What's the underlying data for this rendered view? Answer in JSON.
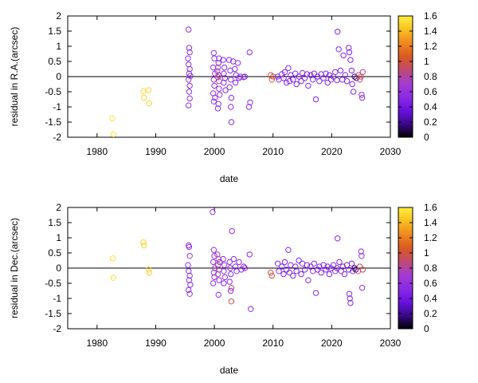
{
  "colorbar": {
    "ticks": [
      0,
      0.2,
      0.4,
      0.6,
      0.8,
      1,
      1.2,
      1.4,
      1.6
    ],
    "range": [
      0,
      1.6
    ],
    "stops": [
      "#000000",
      "#3a0a8a",
      "#6a10e0",
      "#8b2be6",
      "#a33cd0",
      "#c04a70",
      "#d95a20",
      "#f08820",
      "#f7c020",
      "#ffee40"
    ]
  },
  "chart_data": [
    {
      "type": "scatter",
      "title": "",
      "xlabel": "date",
      "ylabel": "residual in R.A.(arcsec)",
      "xlim": [
        1975,
        2030
      ],
      "ylim": [
        -2,
        2
      ],
      "xticks": [
        1980,
        1990,
        2000,
        2010,
        2020,
        2030
      ],
      "yticks": [
        -2,
        -1.5,
        -1,
        -0.5,
        0,
        0.5,
        1,
        1.5,
        2
      ],
      "points": [
        [
          1982.6,
          -1.38,
          1.55
        ],
        [
          1982.8,
          -1.9,
          1.55
        ],
        [
          1987.9,
          -0.48,
          1.5
        ],
        [
          1988.0,
          -0.7,
          1.5
        ],
        [
          1988.8,
          -0.45,
          1.5
        ],
        [
          1988.9,
          -0.88,
          1.5
        ],
        [
          1995.6,
          1.55,
          0.6
        ],
        [
          1995.7,
          0.95,
          0.6
        ],
        [
          1995.8,
          0.8,
          0.6
        ],
        [
          1995.5,
          0.6,
          0.6
        ],
        [
          1995.6,
          0.4,
          0.6
        ],
        [
          1995.8,
          0.25,
          0.6
        ],
        [
          1995.7,
          0.1,
          0.6
        ],
        [
          1995.9,
          0.02,
          0.6
        ],
        [
          1995.6,
          -0.1,
          0.6
        ],
        [
          1995.8,
          -0.3,
          0.6
        ],
        [
          1995.7,
          -0.5,
          0.6
        ],
        [
          1995.8,
          -0.72,
          0.6
        ],
        [
          1995.6,
          -0.95,
          0.6
        ],
        [
          1999.9,
          0.78,
          0.6
        ],
        [
          2000.0,
          0.6,
          0.6
        ],
        [
          1999.8,
          0.3,
          0.6
        ],
        [
          2000.1,
          0.1,
          0.6
        ],
        [
          1999.9,
          -0.1,
          0.6
        ],
        [
          2000.0,
          -0.3,
          0.6
        ],
        [
          1999.8,
          -0.55,
          0.6
        ],
        [
          2000.1,
          -0.7,
          0.6
        ],
        [
          1999.9,
          -0.82,
          0.6
        ],
        [
          2000.5,
          0.18,
          0.7
        ],
        [
          2000.7,
          0.05,
          0.75
        ],
        [
          2000.6,
          -0.02,
          0.8
        ],
        [
          2000.8,
          -0.15,
          0.8
        ],
        [
          2000.6,
          0.3,
          0.75
        ],
        [
          2000.8,
          -0.4,
          0.6
        ],
        [
          2000.9,
          -0.6,
          0.6
        ],
        [
          2000.7,
          -0.9,
          0.6
        ],
        [
          2000.6,
          -1.05,
          0.6
        ],
        [
          2000.8,
          0.6,
          0.6
        ],
        [
          2000.7,
          0.45,
          0.6
        ],
        [
          2001.5,
          0.55,
          0.55
        ],
        [
          2001.7,
          0.3,
          0.55
        ],
        [
          2001.6,
          0.1,
          0.55
        ],
        [
          2001.8,
          -0.05,
          0.55
        ],
        [
          2001.6,
          -0.2,
          0.55
        ],
        [
          2001.9,
          -0.45,
          0.55
        ],
        [
          2002.5,
          0.55,
          0.55
        ],
        [
          2002.7,
          0.2,
          0.55
        ],
        [
          2002.8,
          -0.1,
          0.55
        ],
        [
          2002.6,
          -0.35,
          0.55
        ],
        [
          2002.9,
          -0.7,
          0.55
        ],
        [
          2002.8,
          -1.0,
          0.55
        ],
        [
          2002.9,
          -1.5,
          0.55
        ],
        [
          2003.2,
          0.5,
          0.55
        ],
        [
          2003.5,
          0.25,
          0.55
        ],
        [
          2003.7,
          0.05,
          0.55
        ],
        [
          2003.6,
          -0.2,
          0.55
        ],
        [
          2004.0,
          0.45,
          0.55
        ],
        [
          2004.2,
          -0.05,
          0.55
        ],
        [
          2004.4,
          0.0,
          0.55
        ],
        [
          2005.0,
          -0.02,
          0.55
        ],
        [
          2005.2,
          0.0,
          0.55
        ],
        [
          2006.0,
          0.8,
          0.55
        ],
        [
          2006.1,
          -0.85,
          0.55
        ],
        [
          2005.9,
          -1.0,
          0.55
        ],
        [
          2009.6,
          0.05,
          1.0
        ],
        [
          2009.8,
          -0.1,
          1.0
        ],
        [
          2010.0,
          0.0,
          1.0
        ],
        [
          2010.8,
          0.0,
          0.5
        ],
        [
          2011.0,
          -0.1,
          0.5
        ],
        [
          2011.5,
          0.08,
          0.5
        ],
        [
          2011.8,
          -0.05,
          0.5
        ],
        [
          2012.0,
          0.15,
          0.5
        ],
        [
          2012.3,
          -0.2,
          0.5
        ],
        [
          2012.6,
          0.28,
          0.5
        ],
        [
          2012.8,
          -0.15,
          0.5
        ],
        [
          2013.0,
          0.05,
          0.5
        ],
        [
          2013.4,
          -0.1,
          0.5
        ],
        [
          2013.8,
          0.1,
          0.5
        ],
        [
          2014.0,
          -0.25,
          0.5
        ],
        [
          2014.4,
          0.0,
          0.5
        ],
        [
          2014.8,
          -0.15,
          0.5
        ],
        [
          2015.0,
          0.12,
          0.5
        ],
        [
          2015.4,
          -0.05,
          0.5
        ],
        [
          2015.8,
          0.08,
          0.5
        ],
        [
          2016.0,
          -0.3,
          0.5
        ],
        [
          2016.4,
          0.05,
          0.5
        ],
        [
          2016.8,
          -0.1,
          0.5
        ],
        [
          2017.0,
          0.1,
          0.5
        ],
        [
          2017.3,
          -0.75,
          0.5
        ],
        [
          2017.6,
          0.0,
          0.5
        ],
        [
          2017.9,
          -0.15,
          0.5
        ],
        [
          2018.2,
          0.08,
          0.5
        ],
        [
          2018.6,
          -0.05,
          0.5
        ],
        [
          2019.0,
          0.1,
          0.5
        ],
        [
          2019.3,
          -0.2,
          0.5
        ],
        [
          2019.6,
          0.05,
          0.5
        ],
        [
          2019.9,
          -0.1,
          0.5
        ],
        [
          2020.3,
          0.0,
          0.5
        ],
        [
          2020.6,
          0.15,
          0.5
        ],
        [
          2020.9,
          -0.12,
          0.5
        ],
        [
          2021.0,
          1.48,
          0.5
        ],
        [
          2021.2,
          0.9,
          0.5
        ],
        [
          2021.5,
          0.2,
          0.5
        ],
        [
          2021.8,
          -0.1,
          0.5
        ],
        [
          2022.0,
          0.7,
          0.5
        ],
        [
          2022.3,
          0.05,
          0.5
        ],
        [
          2022.6,
          -0.15,
          0.5
        ],
        [
          2022.9,
          0.95,
          0.5
        ],
        [
          2023.0,
          0.8,
          0.5
        ],
        [
          2023.2,
          0.55,
          0.5
        ],
        [
          2023.4,
          0.2,
          0.5
        ],
        [
          2023.5,
          -0.25,
          0.5
        ],
        [
          2023.7,
          -0.5,
          0.5
        ],
        [
          2023.9,
          0.0,
          0.15
        ],
        [
          2024.2,
          -0.05,
          0.2
        ],
        [
          2024.6,
          0.05,
          0.9
        ],
        [
          2024.8,
          -0.1,
          0.9
        ],
        [
          2025.0,
          0.0,
          0.95
        ],
        [
          2025.1,
          -0.6,
          0.6
        ],
        [
          2025.2,
          -0.7,
          0.6
        ],
        [
          2025.3,
          0.15,
          0.85
        ]
      ]
    },
    {
      "type": "scatter",
      "title": "",
      "xlabel": "date",
      "ylabel": "residual in Dec.(arcsec)",
      "xlim": [
        1975,
        2030
      ],
      "ylim": [
        -2,
        2
      ],
      "xticks": [
        1980,
        1990,
        2000,
        2010,
        2020,
        2030
      ],
      "yticks": [
        -2,
        -1.5,
        -1,
        -0.5,
        0,
        0.5,
        1,
        1.5,
        2
      ],
      "points": [
        [
          1982.7,
          0.32,
          1.55
        ],
        [
          1982.8,
          -0.32,
          1.55
        ],
        [
          1987.9,
          0.85,
          1.5
        ],
        [
          1988.0,
          0.75,
          1.5
        ],
        [
          1988.8,
          -0.05,
          1.5
        ],
        [
          1988.9,
          -0.15,
          1.5
        ],
        [
          1995.6,
          0.75,
          0.6
        ],
        [
          1995.7,
          0.7,
          0.6
        ],
        [
          1995.8,
          0.4,
          0.6
        ],
        [
          1995.5,
          0.1,
          0.6
        ],
        [
          1995.6,
          -0.1,
          0.6
        ],
        [
          1995.8,
          -0.25,
          0.6
        ],
        [
          1995.7,
          -0.4,
          0.6
        ],
        [
          1995.9,
          -0.55,
          0.6
        ],
        [
          1995.6,
          -0.72,
          0.6
        ],
        [
          1995.8,
          -0.85,
          0.6
        ],
        [
          1999.7,
          1.85,
          0.6
        ],
        [
          1999.9,
          0.6,
          0.6
        ],
        [
          2000.0,
          0.4,
          0.6
        ],
        [
          1999.8,
          0.2,
          0.6
        ],
        [
          2000.1,
          0.0,
          0.6
        ],
        [
          1999.9,
          -0.15,
          0.6
        ],
        [
          2000.0,
          -0.3,
          0.6
        ],
        [
          1999.8,
          -0.5,
          0.6
        ],
        [
          2000.5,
          0.45,
          0.75
        ],
        [
          2000.7,
          0.3,
          0.8
        ],
        [
          2000.6,
          0.1,
          0.8
        ],
        [
          2000.8,
          -0.05,
          0.8
        ],
        [
          2000.6,
          -0.2,
          0.75
        ],
        [
          2000.8,
          -0.4,
          0.6
        ],
        [
          2000.7,
          -0.88,
          0.6
        ],
        [
          2000.9,
          0.2,
          0.6
        ],
        [
          2001.5,
          0.3,
          0.55
        ],
        [
          2001.7,
          0.1,
          0.55
        ],
        [
          2001.6,
          -0.1,
          0.55
        ],
        [
          2001.8,
          -0.3,
          0.55
        ],
        [
          2001.6,
          -0.5,
          0.55
        ],
        [
          2002.6,
          0.2,
          0.55
        ],
        [
          2002.7,
          0.0,
          0.55
        ],
        [
          2002.8,
          -0.2,
          0.55
        ],
        [
          2002.6,
          -0.45,
          0.55
        ],
        [
          2002.9,
          -0.65,
          0.9
        ],
        [
          2002.8,
          -0.75,
          0.55
        ],
        [
          2002.9,
          -1.1,
          0.95
        ],
        [
          2003.0,
          1.22,
          0.55
        ],
        [
          2003.3,
          0.3,
          0.55
        ],
        [
          2003.6,
          0.05,
          0.55
        ],
        [
          2003.8,
          -0.1,
          0.55
        ],
        [
          2004.2,
          0.2,
          0.55
        ],
        [
          2004.6,
          -0.05,
          0.55
        ],
        [
          2005.0,
          0.05,
          0.55
        ],
        [
          2005.2,
          0.0,
          0.55
        ],
        [
          2006.0,
          0.45,
          0.55
        ],
        [
          2006.2,
          -1.35,
          0.55
        ],
        [
          2009.6,
          -0.15,
          1.0
        ],
        [
          2009.8,
          -0.25,
          1.0
        ],
        [
          2010.8,
          0.15,
          0.5
        ],
        [
          2011.0,
          -0.1,
          0.5
        ],
        [
          2011.5,
          0.05,
          0.5
        ],
        [
          2011.8,
          -0.2,
          0.5
        ],
        [
          2012.0,
          0.2,
          0.5
        ],
        [
          2012.3,
          -0.05,
          0.5
        ],
        [
          2012.6,
          0.6,
          0.5
        ],
        [
          2012.8,
          -0.15,
          0.5
        ],
        [
          2013.0,
          0.1,
          0.5
        ],
        [
          2013.4,
          -0.25,
          0.5
        ],
        [
          2013.8,
          0.05,
          0.5
        ],
        [
          2014.0,
          -0.1,
          0.5
        ],
        [
          2014.4,
          0.25,
          0.5
        ],
        [
          2014.8,
          -0.2,
          0.5
        ],
        [
          2015.0,
          0.15,
          0.5
        ],
        [
          2015.4,
          -0.05,
          0.5
        ],
        [
          2015.8,
          0.1,
          0.5
        ],
        [
          2016.0,
          -0.4,
          0.5
        ],
        [
          2016.4,
          0.05,
          0.5
        ],
        [
          2016.8,
          -0.1,
          0.5
        ],
        [
          2017.0,
          0.15,
          0.5
        ],
        [
          2017.3,
          -0.82,
          0.5
        ],
        [
          2017.6,
          -0.05,
          0.5
        ],
        [
          2017.9,
          0.05,
          0.5
        ],
        [
          2018.2,
          -0.15,
          0.5
        ],
        [
          2018.6,
          0.1,
          0.5
        ],
        [
          2019.0,
          -0.05,
          0.5
        ],
        [
          2019.3,
          0.05,
          0.5
        ],
        [
          2019.6,
          -0.2,
          0.5
        ],
        [
          2019.9,
          0.0,
          0.5
        ],
        [
          2020.3,
          0.1,
          0.5
        ],
        [
          2020.6,
          -0.1,
          0.5
        ],
        [
          2020.9,
          0.0,
          0.5
        ],
        [
          2021.0,
          0.98,
          0.5
        ],
        [
          2021.3,
          0.2,
          0.5
        ],
        [
          2021.6,
          -0.1,
          0.5
        ],
        [
          2021.9,
          0.05,
          0.5
        ],
        [
          2022.2,
          -0.2,
          0.5
        ],
        [
          2022.6,
          0.1,
          0.5
        ],
        [
          2022.9,
          -0.05,
          0.5
        ],
        [
          2023.0,
          -0.85,
          0.5
        ],
        [
          2023.1,
          -1.0,
          0.5
        ],
        [
          2023.2,
          -1.15,
          0.5
        ],
        [
          2023.4,
          0.15,
          0.5
        ],
        [
          2023.6,
          -0.1,
          0.5
        ],
        [
          2023.9,
          0.0,
          0.15
        ],
        [
          2024.1,
          -0.05,
          0.2
        ],
        [
          2024.5,
          -0.1,
          0.9
        ],
        [
          2024.8,
          0.05,
          0.9
        ],
        [
          2025.0,
          0.55,
          0.6
        ],
        [
          2025.1,
          0.4,
          0.6
        ],
        [
          2025.2,
          -0.65,
          0.6
        ],
        [
          2025.3,
          -0.05,
          0.95
        ]
      ]
    }
  ]
}
